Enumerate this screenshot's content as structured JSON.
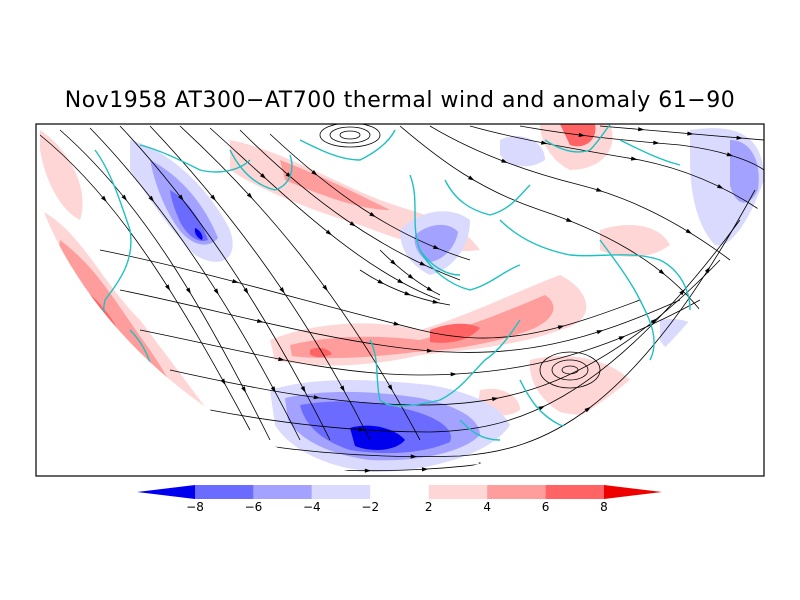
{
  "title": "Nov1958 AT300−AT700 thermal wind and anomaly 61−90",
  "colorbar": {
    "labels": [
      "−8",
      "−6",
      "−4",
      "−2",
      "2",
      "4",
      "6",
      "8"
    ],
    "colors": [
      "#0000ee",
      "#6b6bff",
      "#a3a3ff",
      "#dadaff",
      "#ffffff",
      "#ffd6d6",
      "#ff9d9d",
      "#ff6363",
      "#ee0000"
    ]
  },
  "map": {
    "coastline_color": "#20c0c0",
    "streamline_color": "#000000",
    "positive_anomaly_color": "#ff6363",
    "negative_anomaly_color": "#6b6bff"
  }
}
